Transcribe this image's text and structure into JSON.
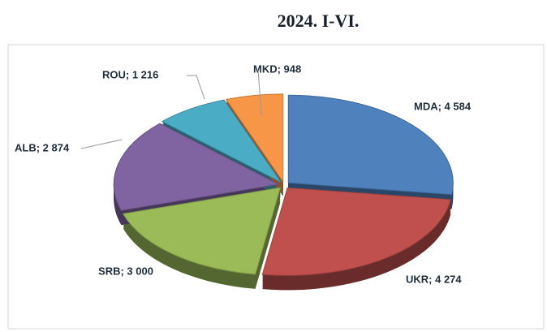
{
  "chart_data": {
    "type": "pie",
    "title": "2024. I-VI.",
    "categories": [
      "MDA",
      "UKR",
      "SRB",
      "ALB",
      "ROU",
      "MKD"
    ],
    "values": [
      4584,
      4274,
      3000,
      2874,
      1216,
      948
    ],
    "value_labels": [
      "MDA; 4 584",
      "UKR; 4 274",
      "SRB; 3 000",
      "ALB; 2 874",
      "ROU; 1 216",
      "MKD; 948"
    ],
    "colors": [
      "#4f81bd",
      "#c0504d",
      "#9bbb59",
      "#8064a2",
      "#4bacc6",
      "#f79646"
    ]
  }
}
